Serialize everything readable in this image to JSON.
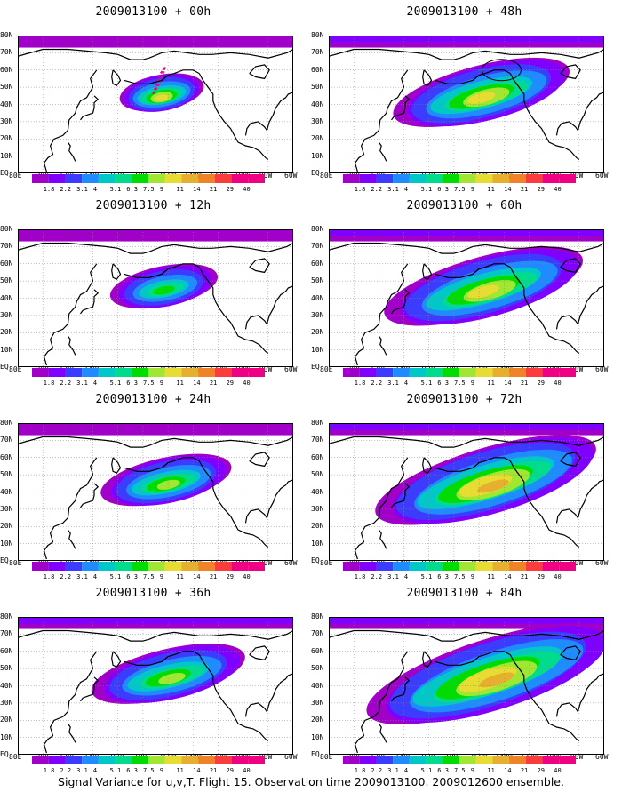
{
  "panels": [
    {
      "title": "2009013100 + 00h",
      "lead": 0
    },
    {
      "title": "2009013100 + 48h",
      "lead": 48
    },
    {
      "title": "2009013100 + 12h",
      "lead": 12
    },
    {
      "title": "2009013100 + 60h",
      "lead": 60
    },
    {
      "title": "2009013100 + 24h",
      "lead": 24
    },
    {
      "title": "2009013100 + 72h",
      "lead": 72
    },
    {
      "title": "2009013100 + 36h",
      "lead": 36
    },
    {
      "title": "2009013100 + 84h",
      "lead": 84
    }
  ],
  "lat_labels": [
    "80N",
    "70N",
    "60N",
    "50N",
    "40N",
    "30N",
    "20N",
    "10N",
    "EQ"
  ],
  "lon_labels": [
    "80E",
    "100E",
    "120E",
    "140E",
    "160E",
    "180",
    "160W",
    "140W",
    "120W",
    "100W",
    "80W",
    "60W"
  ],
  "colorbar": {
    "levels": [
      "1.8",
      "2.2",
      "3.1",
      "4",
      "5.1",
      "6.3",
      "7.5",
      "9",
      "11",
      "14",
      "21",
      "29",
      "40"
    ],
    "colors": [
      "#a000c8",
      "#8000ff",
      "#3c3cff",
      "#1e8cff",
      "#00c8c8",
      "#00dc8c",
      "#00dc00",
      "#a0e632",
      "#e6dc32",
      "#e6af2d",
      "#f08228",
      "#fa3c3c",
      "#f00082"
    ]
  },
  "caption": "Signal Variance for u,v,T. Flight 15. Observation time 2009013100. 2009012600 ensemble."
}
